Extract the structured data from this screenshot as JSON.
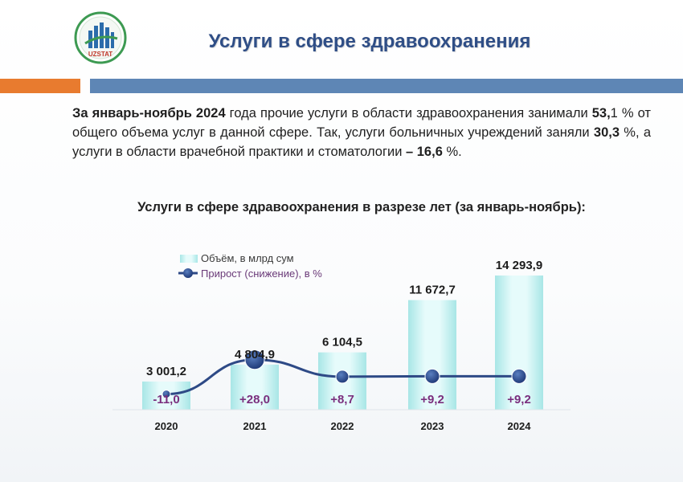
{
  "header": {
    "logo_text": "UZSTAT",
    "title": "Услуги в сфере здравоохранения"
  },
  "intro": {
    "p1": "За январь-ноябрь 2024",
    "p2": " года прочие услуги в области здравоохранения занимали ",
    "p3": "53,",
    "p4": "1 % от общего объема услуг в данной сфере. Так, услуги больничных учреждений заняли ",
    "p5": "30,3",
    "p6": " %, а услуги в области врачебной практики и стоматологии ",
    "p7": "– 16,6",
    "p8": " %."
  },
  "chart_title": "Услуги в сфере здравоохранения в разрезе лет (за январь-ноябрь):",
  "colors": {
    "title": "#2f4e86",
    "bar_fill": "#c8f0f0",
    "line": "#2e4a86",
    "marker": "#2e4a86",
    "pct_text": "#7a2f7e",
    "orange": "#e87b2f",
    "blue": "#5e86b5"
  },
  "chart_data": {
    "type": "bar",
    "categories": [
      "2020",
      "2021",
      "2022",
      "2023",
      "2024"
    ],
    "series": [
      {
        "name": "Объём,  в млрд сум",
        "type": "bar",
        "values": [
          3001.2,
          4804.9,
          6104.5,
          11672.7,
          14293.9
        ],
        "labels": [
          "3 001,2",
          "4 804,9",
          "6 104,5",
          "11 672,7",
          "14 293,9"
        ]
      },
      {
        "name": "Прирост  (снижение),  в %",
        "type": "line",
        "values": [
          -11.0,
          28.0,
          8.7,
          9.2,
          9.2
        ],
        "labels": [
          "-11,0",
          "+28,0",
          "+8,7",
          "+9,2",
          "+9,2"
        ]
      }
    ],
    "legend_position": "top-left",
    "grid": false
  }
}
